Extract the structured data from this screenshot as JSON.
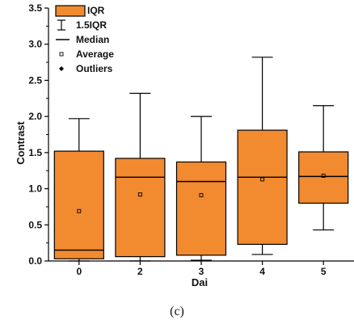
{
  "caption": "(c)",
  "chart_data": {
    "type": "box",
    "xlabel": "Dai",
    "ylabel": "Contrast",
    "ylim": [
      0,
      3.5
    ],
    "yticks": [
      0.0,
      0.5,
      1.0,
      1.5,
      2.0,
      2.5,
      3.0,
      3.5
    ],
    "ytick_labels": [
      "0.0",
      "0.5",
      "1.0",
      "1.5",
      "2.0",
      "2.5",
      "3.0",
      "3.5"
    ],
    "categories": [
      "0",
      "2",
      "3",
      "4",
      "5"
    ],
    "box_color": "#f28a30",
    "boxes": [
      {
        "label": "0",
        "whisker_low": 0.0,
        "q1": 0.03,
        "median": 0.15,
        "q3": 1.52,
        "whisker_high": 1.97,
        "mean": 0.69
      },
      {
        "label": "2",
        "whisker_low": 0.0,
        "q1": 0.06,
        "median": 1.16,
        "q3": 1.42,
        "whisker_high": 2.32,
        "mean": 0.92
      },
      {
        "label": "3",
        "whisker_low": 0.01,
        "q1": 0.08,
        "median": 1.1,
        "q3": 1.37,
        "whisker_high": 2.0,
        "mean": 0.91
      },
      {
        "label": "4",
        "whisker_low": 0.09,
        "q1": 0.23,
        "median": 1.16,
        "q3": 1.81,
        "whisker_high": 2.82,
        "mean": 1.13
      },
      {
        "label": "5",
        "whisker_low": 0.43,
        "q1": 0.8,
        "median": 1.17,
        "q3": 1.51,
        "whisker_high": 2.15,
        "mean": 1.18
      }
    ],
    "legend": {
      "position": "top-left",
      "items": [
        {
          "symbol": "box",
          "label": "IQR"
        },
        {
          "symbol": "whisker",
          "label": "1.5IQR"
        },
        {
          "symbol": "line",
          "label": "Median"
        },
        {
          "symbol": "square",
          "label": "Average"
        },
        {
          "symbol": "diamond",
          "label": "Outliers"
        }
      ]
    }
  }
}
